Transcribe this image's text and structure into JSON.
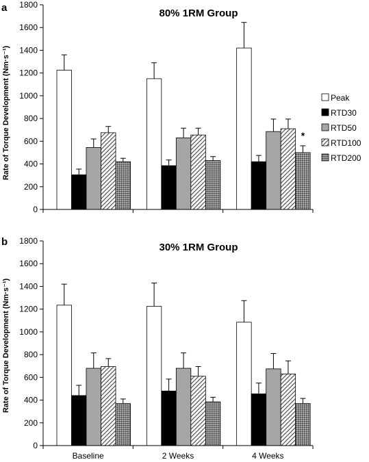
{
  "chart_data": {
    "type": "bar",
    "ylabel": "Rate of Torque Development (Nm·s⁻¹)",
    "ylim": [
      0,
      1800
    ],
    "yticks": [
      0,
      200,
      400,
      600,
      800,
      1000,
      1200,
      1400,
      1600,
      1800
    ],
    "categories": [
      "Baseline",
      "2 Weeks",
      "4 Weeks"
    ],
    "legend": {
      "placement": "right",
      "entries": [
        {
          "name": "Peak",
          "style": "white"
        },
        {
          "name": "RTD30",
          "style": "black"
        },
        {
          "name": "RTD50",
          "style": "gray"
        },
        {
          "name": "RTD100",
          "style": "hatch"
        },
        {
          "name": "RTD200",
          "style": "dots"
        }
      ]
    },
    "panels": [
      {
        "label": "a",
        "title": "80% 1RM Group",
        "series": [
          {
            "name": "Peak",
            "values": [
              1225,
              1150,
              1420
            ],
            "errors": [
              135,
              140,
              225
            ]
          },
          {
            "name": "RTD30",
            "values": [
              305,
              385,
              420
            ],
            "errors": [
              50,
              50,
              55
            ]
          },
          {
            "name": "RTD50",
            "values": [
              545,
              630,
              685
            ],
            "errors": [
              75,
              85,
              110
            ]
          },
          {
            "name": "RTD100",
            "values": [
              675,
              655,
              710
            ],
            "errors": [
              55,
              60,
              85
            ]
          },
          {
            "name": "RTD200",
            "values": [
              420,
              430,
              500
            ],
            "errors": [
              30,
              35,
              60
            ]
          }
        ],
        "annotations": [
          {
            "text": "*",
            "category": "4 Weeks",
            "series": "RTD200"
          }
        ]
      },
      {
        "label": "b",
        "title": "30% 1RM Group",
        "series": [
          {
            "name": "Peak",
            "values": [
              1235,
              1225,
              1085
            ],
            "errors": [
              185,
              205,
              190
            ]
          },
          {
            "name": "RTD30",
            "values": [
              440,
              480,
              455
            ],
            "errors": [
              90,
              105,
              95
            ]
          },
          {
            "name": "RTD50",
            "values": [
              680,
              680,
              675
            ],
            "errors": [
              135,
              135,
              135
            ]
          },
          {
            "name": "RTD100",
            "values": [
              695,
              610,
              630
            ],
            "errors": [
              70,
              85,
              115
            ]
          },
          {
            "name": "RTD200",
            "values": [
              370,
              385,
              370
            ],
            "errors": [
              40,
              40,
              45
            ]
          }
        ],
        "annotations": []
      }
    ]
  }
}
